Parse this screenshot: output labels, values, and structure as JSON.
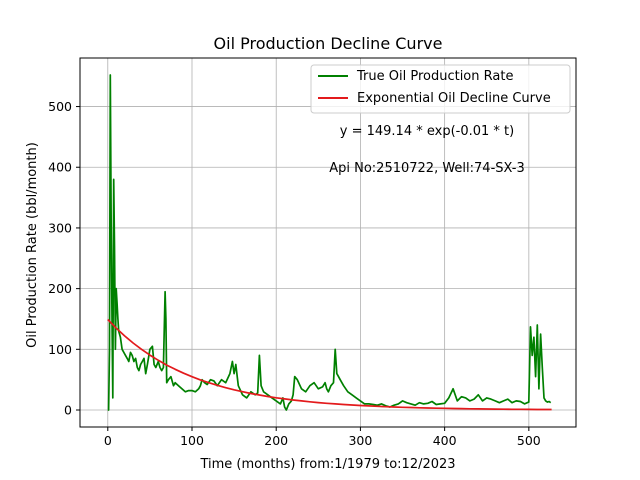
{
  "chart_data": {
    "type": "line",
    "title": "Oil Production Decline Curve",
    "xlabel": "Time (months) from:1/1979 to:12/2023",
    "ylabel": "Oil Production Rate (bbl/month)",
    "xlim": [
      -33,
      556
    ],
    "ylim": [
      -28,
      580
    ],
    "xticks": [
      0,
      100,
      200,
      300,
      400,
      500
    ],
    "yticks": [
      0,
      100,
      200,
      300,
      400,
      500
    ],
    "grid": true,
    "legend_position": "top-right",
    "annotations": [
      "y = 149.14 * exp(-0.01 * t)",
      "Api No:2510722, Well:74-SX-3"
    ],
    "series": [
      {
        "name": "True Oil Production Rate",
        "color": "#008000",
        "x": [
          0,
          1,
          2,
          3,
          4,
          5,
          6,
          7,
          8,
          9,
          10,
          11,
          12,
          13,
          15,
          17,
          19,
          21,
          23,
          25,
          27,
          29,
          31,
          33,
          35,
          37,
          39,
          41,
          43,
          45,
          47,
          50,
          53,
          55,
          57,
          60,
          62,
          64,
          66,
          68,
          69,
          70,
          72,
          75,
          78,
          80,
          84,
          88,
          92,
          96,
          100,
          104,
          108,
          110,
          112,
          115,
          118,
          122,
          126,
          130,
          135,
          140,
          145,
          148,
          150,
          152,
          155,
          160,
          165,
          170,
          175,
          178,
          180,
          182,
          185,
          190,
          195,
          200,
          205,
          208,
          210,
          212,
          215,
          218,
          220,
          222,
          225,
          230,
          235,
          240,
          245,
          250,
          255,
          258,
          260,
          262,
          265,
          268,
          270,
          272,
          274,
          276,
          278,
          280,
          285,
          290,
          295,
          300,
          305,
          310,
          315,
          320,
          325,
          330,
          335,
          340,
          345,
          350,
          355,
          360,
          365,
          370,
          375,
          380,
          385,
          390,
          395,
          400,
          405,
          410,
          415,
          420,
          425,
          430,
          435,
          440,
          445,
          450,
          455,
          460,
          465,
          470,
          475,
          480,
          485,
          490,
          495,
          498,
          500,
          502,
          504,
          506,
          508,
          510,
          512,
          514,
          516,
          518,
          520,
          522,
          524,
          526
        ],
        "y": [
          0,
          0,
          100,
          552,
          300,
          150,
          20,
          380,
          270,
          100,
          200,
          175,
          150,
          130,
          120,
          100,
          95,
          90,
          85,
          80,
          95,
          90,
          80,
          85,
          70,
          65,
          75,
          80,
          85,
          60,
          75,
          100,
          105,
          75,
          70,
          80,
          70,
          65,
          70,
          195,
          150,
          45,
          50,
          55,
          40,
          45,
          40,
          35,
          30,
          32,
          32,
          30,
          35,
          40,
          50,
          45,
          42,
          50,
          48,
          40,
          50,
          45,
          60,
          80,
          60,
          75,
          40,
          25,
          20,
          30,
          25,
          28,
          90,
          40,
          30,
          25,
          20,
          15,
          10,
          20,
          5,
          0,
          10,
          15,
          25,
          55,
          50,
          35,
          30,
          40,
          45,
          35,
          38,
          45,
          35,
          30,
          40,
          45,
          100,
          60,
          55,
          50,
          45,
          40,
          30,
          25,
          20,
          15,
          10,
          10,
          9,
          8,
          10,
          7,
          5,
          8,
          10,
          15,
          12,
          10,
          8,
          12,
          10,
          11,
          14,
          9,
          10,
          11,
          20,
          35,
          15,
          22,
          20,
          15,
          18,
          25,
          15,
          20,
          18,
          15,
          12,
          15,
          18,
          12,
          15,
          14,
          10,
          12,
          13,
          137,
          90,
          120,
          55,
          140,
          35,
          125,
          70,
          20,
          15,
          13,
          14,
          12
        ]
      },
      {
        "name": "Exponential Oil Decline Curve",
        "color": "#e31a1c",
        "x": [
          0,
          10,
          20,
          30,
          40,
          50,
          60,
          70,
          80,
          90,
          100,
          110,
          120,
          130,
          140,
          150,
          160,
          170,
          180,
          190,
          200,
          210,
          220,
          230,
          240,
          250,
          260,
          270,
          280,
          290,
          300,
          310,
          320,
          330,
          340,
          350,
          360,
          370,
          380,
          390,
          400,
          410,
          420,
          430,
          440,
          450,
          460,
          470,
          480,
          490,
          500,
          510,
          520,
          527
        ],
        "y": [
          149.14,
          134.94,
          122.1,
          110.48,
          99.97,
          90.45,
          81.84,
          74.06,
          67.01,
          60.63,
          54.86,
          49.64,
          44.92,
          40.64,
          36.77,
          33.27,
          30.11,
          27.24,
          24.65,
          22.3,
          20.18,
          18.26,
          16.52,
          14.95,
          13.53,
          12.24,
          11.08,
          10.02,
          9.07,
          8.21,
          7.43,
          6.72,
          6.08,
          5.5,
          4.98,
          4.5,
          4.07,
          3.69,
          3.34,
          3.02,
          2.73,
          2.47,
          2.24,
          2.02,
          1.83,
          1.66,
          1.5,
          1.36,
          1.23,
          1.11,
          1.01,
          0.91,
          0.82,
          0.77
        ]
      }
    ]
  }
}
